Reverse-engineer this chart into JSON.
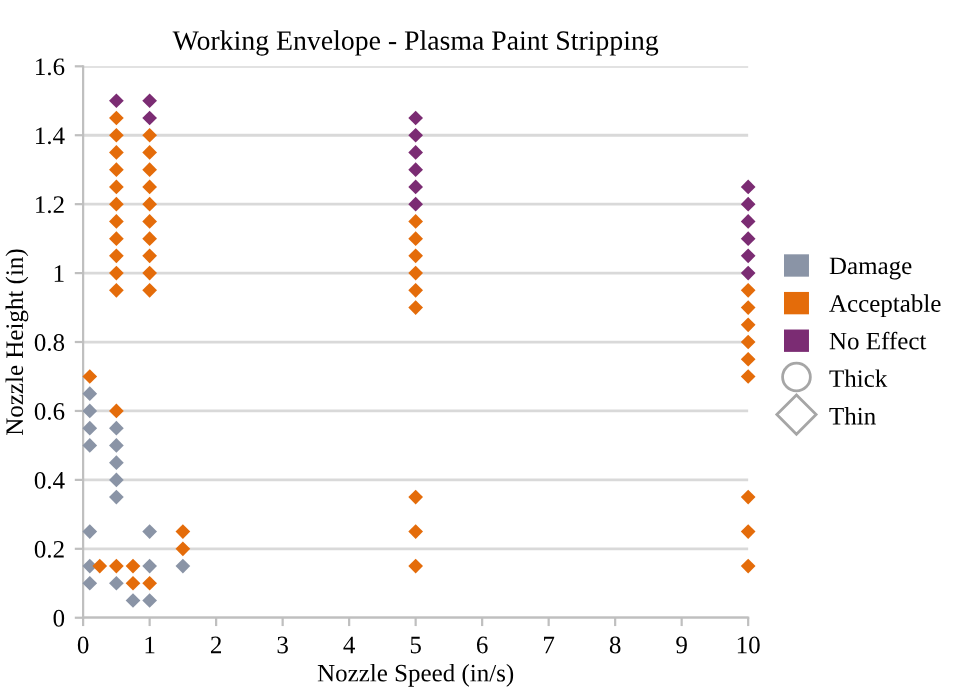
{
  "chart_data": {
    "type": "scatter",
    "title": "Working Envelope - Plasma Paint Stripping",
    "xlabel": "Nozzle Speed (in/s)",
    "ylabel": "Nozzle Height (in)",
    "xlim": [
      0,
      10
    ],
    "xticks": [
      0,
      1,
      2,
      3,
      4,
      5,
      6,
      7,
      8,
      9,
      10
    ],
    "ylim": [
      0,
      1.6
    ],
    "yticks": [
      0,
      0.2,
      0.4,
      0.6,
      0.8,
      1,
      1.2,
      1.4,
      1.6
    ],
    "grid": "y",
    "legend": "right",
    "marker": "diamond",
    "series": [
      {
        "name": "Damage",
        "color": "#8a94a6",
        "x": [
          0.1,
          0.1,
          0.1,
          0.1,
          0.1,
          0.1,
          0.1,
          0.5,
          0.5,
          0.5,
          0.5,
          0.5,
          0.5,
          0.75,
          1,
          1,
          1,
          1.5
        ],
        "values": [
          0.65,
          0.6,
          0.55,
          0.5,
          0.25,
          0.15,
          0.1,
          0.55,
          0.5,
          0.45,
          0.4,
          0.35,
          0.1,
          0.05,
          0.25,
          0.15,
          0.05,
          0.15
        ]
      },
      {
        "name": "Acceptable",
        "color": "#e46c0a",
        "x": [
          0.1,
          0.25,
          0.5,
          0.5,
          0.5,
          0.5,
          0.5,
          0.5,
          0.5,
          0.5,
          0.5,
          0.5,
          0.5,
          0.5,
          0.5,
          0.75,
          0.75,
          1,
          1,
          1,
          1,
          1,
          1,
          1,
          1,
          1,
          1,
          1,
          1.5,
          1.5,
          5,
          5,
          5,
          5,
          5,
          5,
          5,
          5,
          5,
          10,
          10,
          10,
          10,
          10,
          10,
          10,
          10,
          10
        ],
        "values": [
          0.7,
          0.15,
          1.45,
          1.4,
          1.35,
          1.3,
          1.25,
          1.2,
          1.15,
          1.1,
          1.05,
          1.0,
          0.95,
          0.6,
          0.15,
          0.15,
          0.1,
          1.4,
          1.35,
          1.3,
          1.25,
          1.2,
          1.15,
          1.1,
          1.05,
          1.0,
          0.95,
          0.1,
          0.25,
          0.2,
          1.15,
          1.1,
          1.05,
          1.0,
          0.95,
          0.9,
          0.35,
          0.25,
          0.15,
          0.95,
          0.9,
          0.85,
          0.8,
          0.75,
          0.7,
          0.35,
          0.25,
          0.15
        ]
      },
      {
        "name": "No Effect",
        "color": "#7b2c73",
        "x": [
          0.5,
          1,
          1,
          5,
          5,
          5,
          5,
          5,
          5,
          10,
          10,
          10,
          10,
          10,
          10
        ],
        "values": [
          1.5,
          1.5,
          1.45,
          1.45,
          1.4,
          1.35,
          1.3,
          1.25,
          1.2,
          1.25,
          1.2,
          1.15,
          1.1,
          1.05,
          1.0
        ]
      },
      {
        "name": "Thick",
        "color": "#a6a6a6",
        "marker": "circle"
      },
      {
        "name": "Thin",
        "color": "#a6a6a6",
        "marker": "diamond"
      }
    ]
  }
}
